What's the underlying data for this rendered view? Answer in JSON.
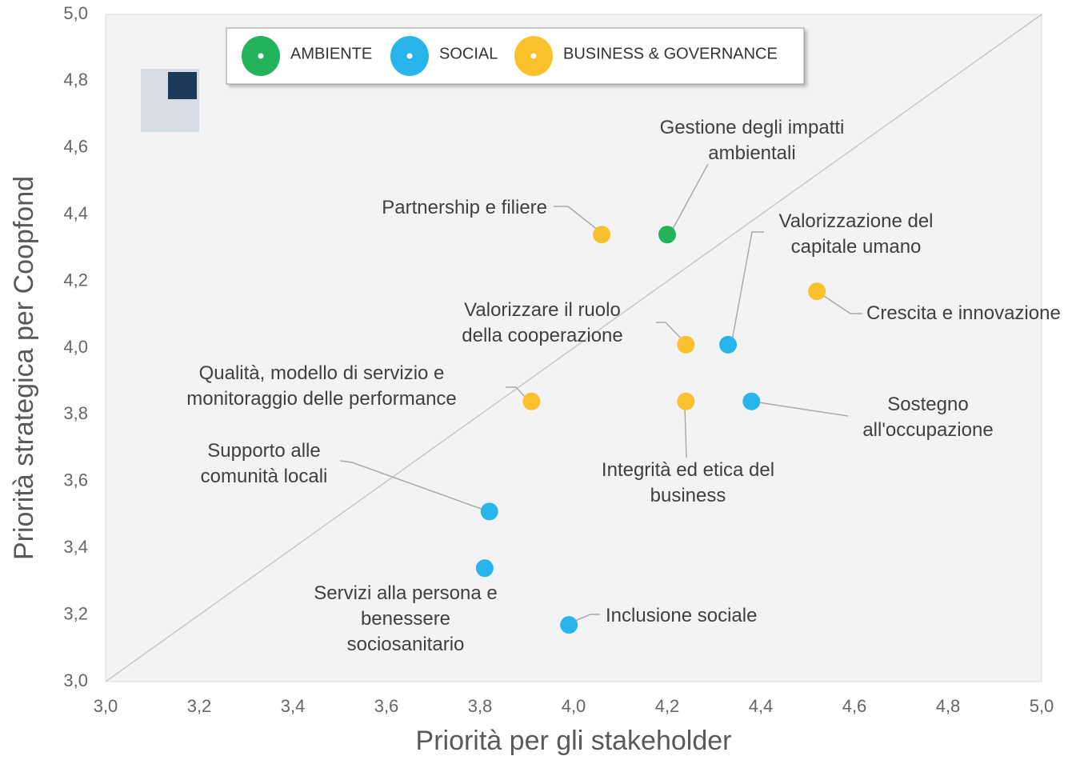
{
  "chart_data": {
    "type": "scatter",
    "xlabel": "Priorità per gli stakeholder",
    "ylabel": "Priorità strategica per Coopfond",
    "xlim": [
      3.0,
      5.0
    ],
    "ylim": [
      3.0,
      5.0
    ],
    "xticks": [
      {
        "value": 3.0,
        "label": "3,0"
      },
      {
        "value": 3.2,
        "label": "3,2"
      },
      {
        "value": 3.4,
        "label": "3,4"
      },
      {
        "value": 3.6,
        "label": "3,6"
      },
      {
        "value": 3.8,
        "label": "3,8"
      },
      {
        "value": 4.0,
        "label": "4,0"
      },
      {
        "value": 4.2,
        "label": "4,2"
      },
      {
        "value": 4.4,
        "label": "4,4"
      },
      {
        "value": 4.6,
        "label": "4,6"
      },
      {
        "value": 4.8,
        "label": "4,8"
      },
      {
        "value": 5.0,
        "label": "5,0"
      }
    ],
    "yticks": [
      {
        "value": 3.0,
        "label": "3,0"
      },
      {
        "value": 3.2,
        "label": "3,2"
      },
      {
        "value": 3.4,
        "label": "3,4"
      },
      {
        "value": 3.6,
        "label": "3,6"
      },
      {
        "value": 3.8,
        "label": "3,8"
      },
      {
        "value": 4.0,
        "label": "4,0"
      },
      {
        "value": 4.2,
        "label": "4,2"
      },
      {
        "value": 4.4,
        "label": "4,4"
      },
      {
        "value": 4.6,
        "label": "4,6"
      },
      {
        "value": 4.8,
        "label": "4,8"
      },
      {
        "value": 5.0,
        "label": "5,0"
      }
    ],
    "grid": false,
    "series": [
      {
        "name": "AMBIENTE",
        "color": "#22b35b",
        "x": [
          4.2
        ],
        "values": [
          4.34
        ],
        "labels": [
          "Gestione degli impatti\nambientali"
        ]
      },
      {
        "name": "SOCIAL",
        "color": "#27b5ec",
        "x": [
          4.33,
          4.38,
          3.82,
          3.81,
          3.99
        ],
        "values": [
          4.01,
          3.84,
          3.51,
          3.34,
          3.17
        ],
        "labels": [
          "Valorizzazione del\ncapitale umano",
          "Sostegno\nall'occupazione",
          "Supporto alle\ncomunità locali",
          "Servizi alla persona e\nbenessere\nsociosanitario",
          "Inclusione sociale"
        ]
      },
      {
        "name": "BUSINESS & GOVERNANCE",
        "color": "#fbc12c",
        "x": [
          4.06,
          4.52,
          4.24,
          3.91,
          4.24
        ],
        "values": [
          4.34,
          4.17,
          4.01,
          3.84,
          3.84
        ],
        "labels": [
          "Partnership e filiere",
          "Crescita e innovazione",
          "Valorizzare il ruolo\ndella cooperazione",
          "Qualità, modello di servizio e\nmonitoraggio delle performance",
          "Integrità ed etica del\nbusiness"
        ]
      }
    ]
  }
}
